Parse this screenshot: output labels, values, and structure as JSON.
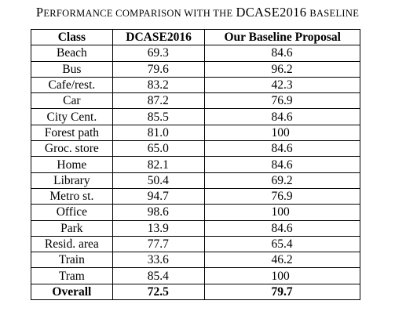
{
  "caption": {
    "first_letter": "P",
    "part1_rest": "erformance comparison with the",
    "acronym": "DCASE2016",
    "part2": "baseline"
  },
  "table": {
    "headers": [
      "Class",
      "DCASE2016",
      "Our Baseline Proposal"
    ],
    "rows": [
      {
        "class": "Beach",
        "dcase": "69.3",
        "ours": "84.6"
      },
      {
        "class": "Bus",
        "dcase": "79.6",
        "ours": "96.2"
      },
      {
        "class": "Cafe/rest.",
        "dcase": "83.2",
        "ours": "42.3"
      },
      {
        "class": "Car",
        "dcase": "87.2",
        "ours": "76.9"
      },
      {
        "class": "City Cent.",
        "dcase": "85.5",
        "ours": "84.6"
      },
      {
        "class": "Forest path",
        "dcase": "81.0",
        "ours": "100"
      },
      {
        "class": "Groc. store",
        "dcase": "65.0",
        "ours": "84.6"
      },
      {
        "class": "Home",
        "dcase": "82.1",
        "ours": "84.6"
      },
      {
        "class": "Library",
        "dcase": "50.4",
        "ours": "69.2"
      },
      {
        "class": "Metro st.",
        "dcase": "94.7",
        "ours": "76.9"
      },
      {
        "class": "Office",
        "dcase": "98.6",
        "ours": "100"
      },
      {
        "class": "Park",
        "dcase": "13.9",
        "ours": "84.6"
      },
      {
        "class": "Resid. area",
        "dcase": "77.7",
        "ours": "65.4"
      },
      {
        "class": "Train",
        "dcase": "33.6",
        "ours": "46.2"
      },
      {
        "class": "Tram",
        "dcase": "85.4",
        "ours": "100"
      }
    ],
    "overall": {
      "class": "Overall",
      "dcase": "72.5",
      "ours": "79.7"
    }
  }
}
